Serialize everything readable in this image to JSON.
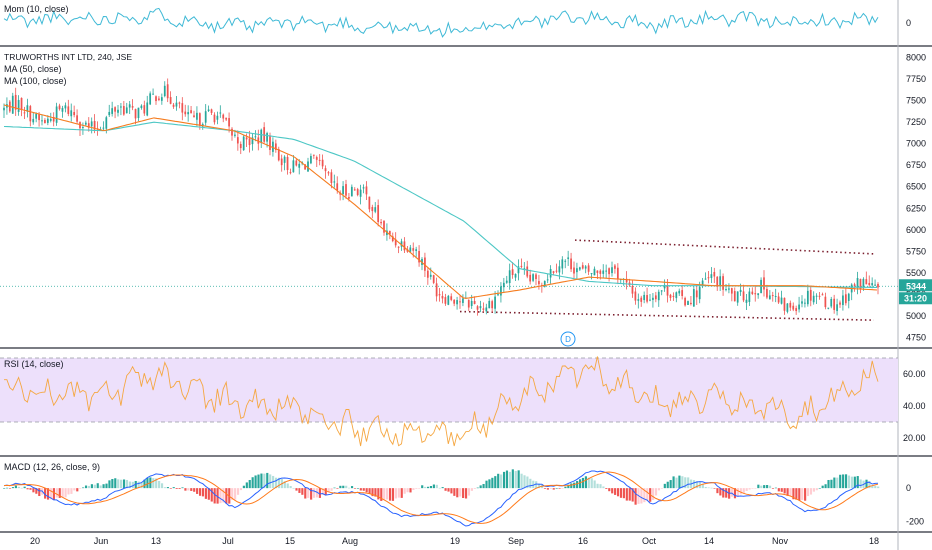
{
  "colors": {
    "up": "#26a69a",
    "down": "#ef5350",
    "ma50": "#f57c1f",
    "ma100": "#4dc7c5",
    "momentum": "#3fb9d6",
    "rsi": "#f5a742",
    "rsi_band": "#ede0fb",
    "macd": "#2962ff",
    "signal": "#ff7a1a",
    "hist_up_strong": "#26a69a",
    "hist_up_weak": "#b2dfdb",
    "hist_down_strong": "#ef5350",
    "hist_down_weak": "#ffcdd2",
    "price_label": "#26a69a",
    "channel": "#7b1f2e",
    "event_marker": "#2196f3"
  },
  "panes": {
    "momentum": {
      "label": "Mom (10, close)",
      "ticks": [
        "0"
      ]
    },
    "price": {
      "title": "TRUWORTHS INT LTD, 240, JSE",
      "ma50_label": "MA (50, close)",
      "ma100_label": "MA (100, close)",
      "ticks": [
        "8000",
        "7750",
        "7500",
        "7250",
        "7000",
        "6750",
        "6500",
        "6250",
        "6000",
        "5750",
        "5500",
        "5250",
        "5000",
        "4750"
      ],
      "last_price": "5344",
      "countdown": "31:20",
      "event_marker": "D"
    },
    "rsi": {
      "label": "RSI (14, close)",
      "ticks": [
        "60.00",
        "40.00",
        "20.00"
      ]
    },
    "macd": {
      "label": "MACD (12, 26, close, 9)",
      "ticks": [
        "0",
        "-200"
      ]
    }
  },
  "time_axis": [
    "20",
    "Jun",
    "13",
    "Jul",
    "15",
    "Aug",
    "19",
    "Sep",
    "16",
    "Oct",
    "14",
    "Nov",
    "18"
  ],
  "chart_data": [
    {
      "type": "line",
      "title": "Mom (10, close)",
      "x": [
        "May 20",
        "Jun",
        "Jun 13",
        "Jul",
        "Jul 15",
        "Aug",
        "Aug 19",
        "Sep",
        "Sep 16",
        "Oct",
        "Oct 14",
        "Nov",
        "Nov 18"
      ],
      "series": [
        {
          "name": "Mom (10, close)",
          "values": [
            150,
            300,
            450,
            -200,
            50,
            -150,
            -500,
            100,
            350,
            -100,
            300,
            0,
            250
          ]
        }
      ]
    },
    {
      "type": "candlestick",
      "title": "TRUWORTHS INT LTD, 240, JSE",
      "x": [
        "May 20",
        "Jun",
        "Jun 13",
        "Jul",
        "Jul 15",
        "Aug",
        "Aug 19",
        "Sep",
        "Sep 16",
        "Oct",
        "Oct 14",
        "Nov",
        "Nov 18"
      ],
      "series": [
        {
          "name": "close",
          "values": [
            7400,
            7250,
            7550,
            7150,
            6800,
            6450,
            5050,
            5450,
            5600,
            5200,
            5350,
            5150,
            5344
          ]
        },
        {
          "name": "MA (50, close)",
          "values": [
            7450,
            7150,
            7300,
            7150,
            6850,
            6300,
            5200,
            5300,
            5450,
            5400,
            5350,
            5350,
            5300
          ]
        },
        {
          "name": "MA (100, close)",
          "values": [
            7200,
            7150,
            7250,
            7150,
            7050,
            6800,
            6100,
            5550,
            5400,
            5350,
            5350,
            5340,
            5330
          ]
        }
      ],
      "ylim": [
        4650,
        8100
      ],
      "channel": {
        "upper": [
          5880,
          5720
        ],
        "lower": [
          5050,
          4950
        ]
      }
    },
    {
      "type": "line",
      "title": "RSI (14, close)",
      "x": [
        "May 20",
        "Jun",
        "Jun 13",
        "Jul",
        "Jul 15",
        "Aug",
        "Aug 19",
        "Sep",
        "Sep 16",
        "Oct",
        "Oct 14",
        "Nov",
        "Nov 18"
      ],
      "series": [
        {
          "name": "RSI (14, close)",
          "values": [
            52,
            45,
            60,
            42,
            38,
            25,
            22,
            45,
            66,
            42,
            44,
            35,
            60
          ]
        }
      ],
      "ylim": [
        10,
        75
      ],
      "bands": [
        70,
        30
      ]
    },
    {
      "type": "bar",
      "title": "MACD (12, 26, close, 9)",
      "x": [
        "May 20",
        "Jun",
        "Jun 13",
        "Jul",
        "Jul 15",
        "Aug",
        "Aug 19",
        "Sep",
        "Sep 16",
        "Oct",
        "Oct 14",
        "Nov",
        "Nov 18"
      ],
      "series": [
        {
          "name": "MACD",
          "values": [
            10,
            -100,
            120,
            -80,
            50,
            -60,
            -220,
            -40,
            100,
            -60,
            30,
            -120,
            20
          ]
        },
        {
          "name": "Signal",
          "values": [
            0,
            -80,
            80,
            -40,
            30,
            -40,
            -180,
            -80,
            70,
            -20,
            10,
            -80,
            -20
          ]
        }
      ],
      "ylim": [
        -250,
        180
      ]
    }
  ]
}
